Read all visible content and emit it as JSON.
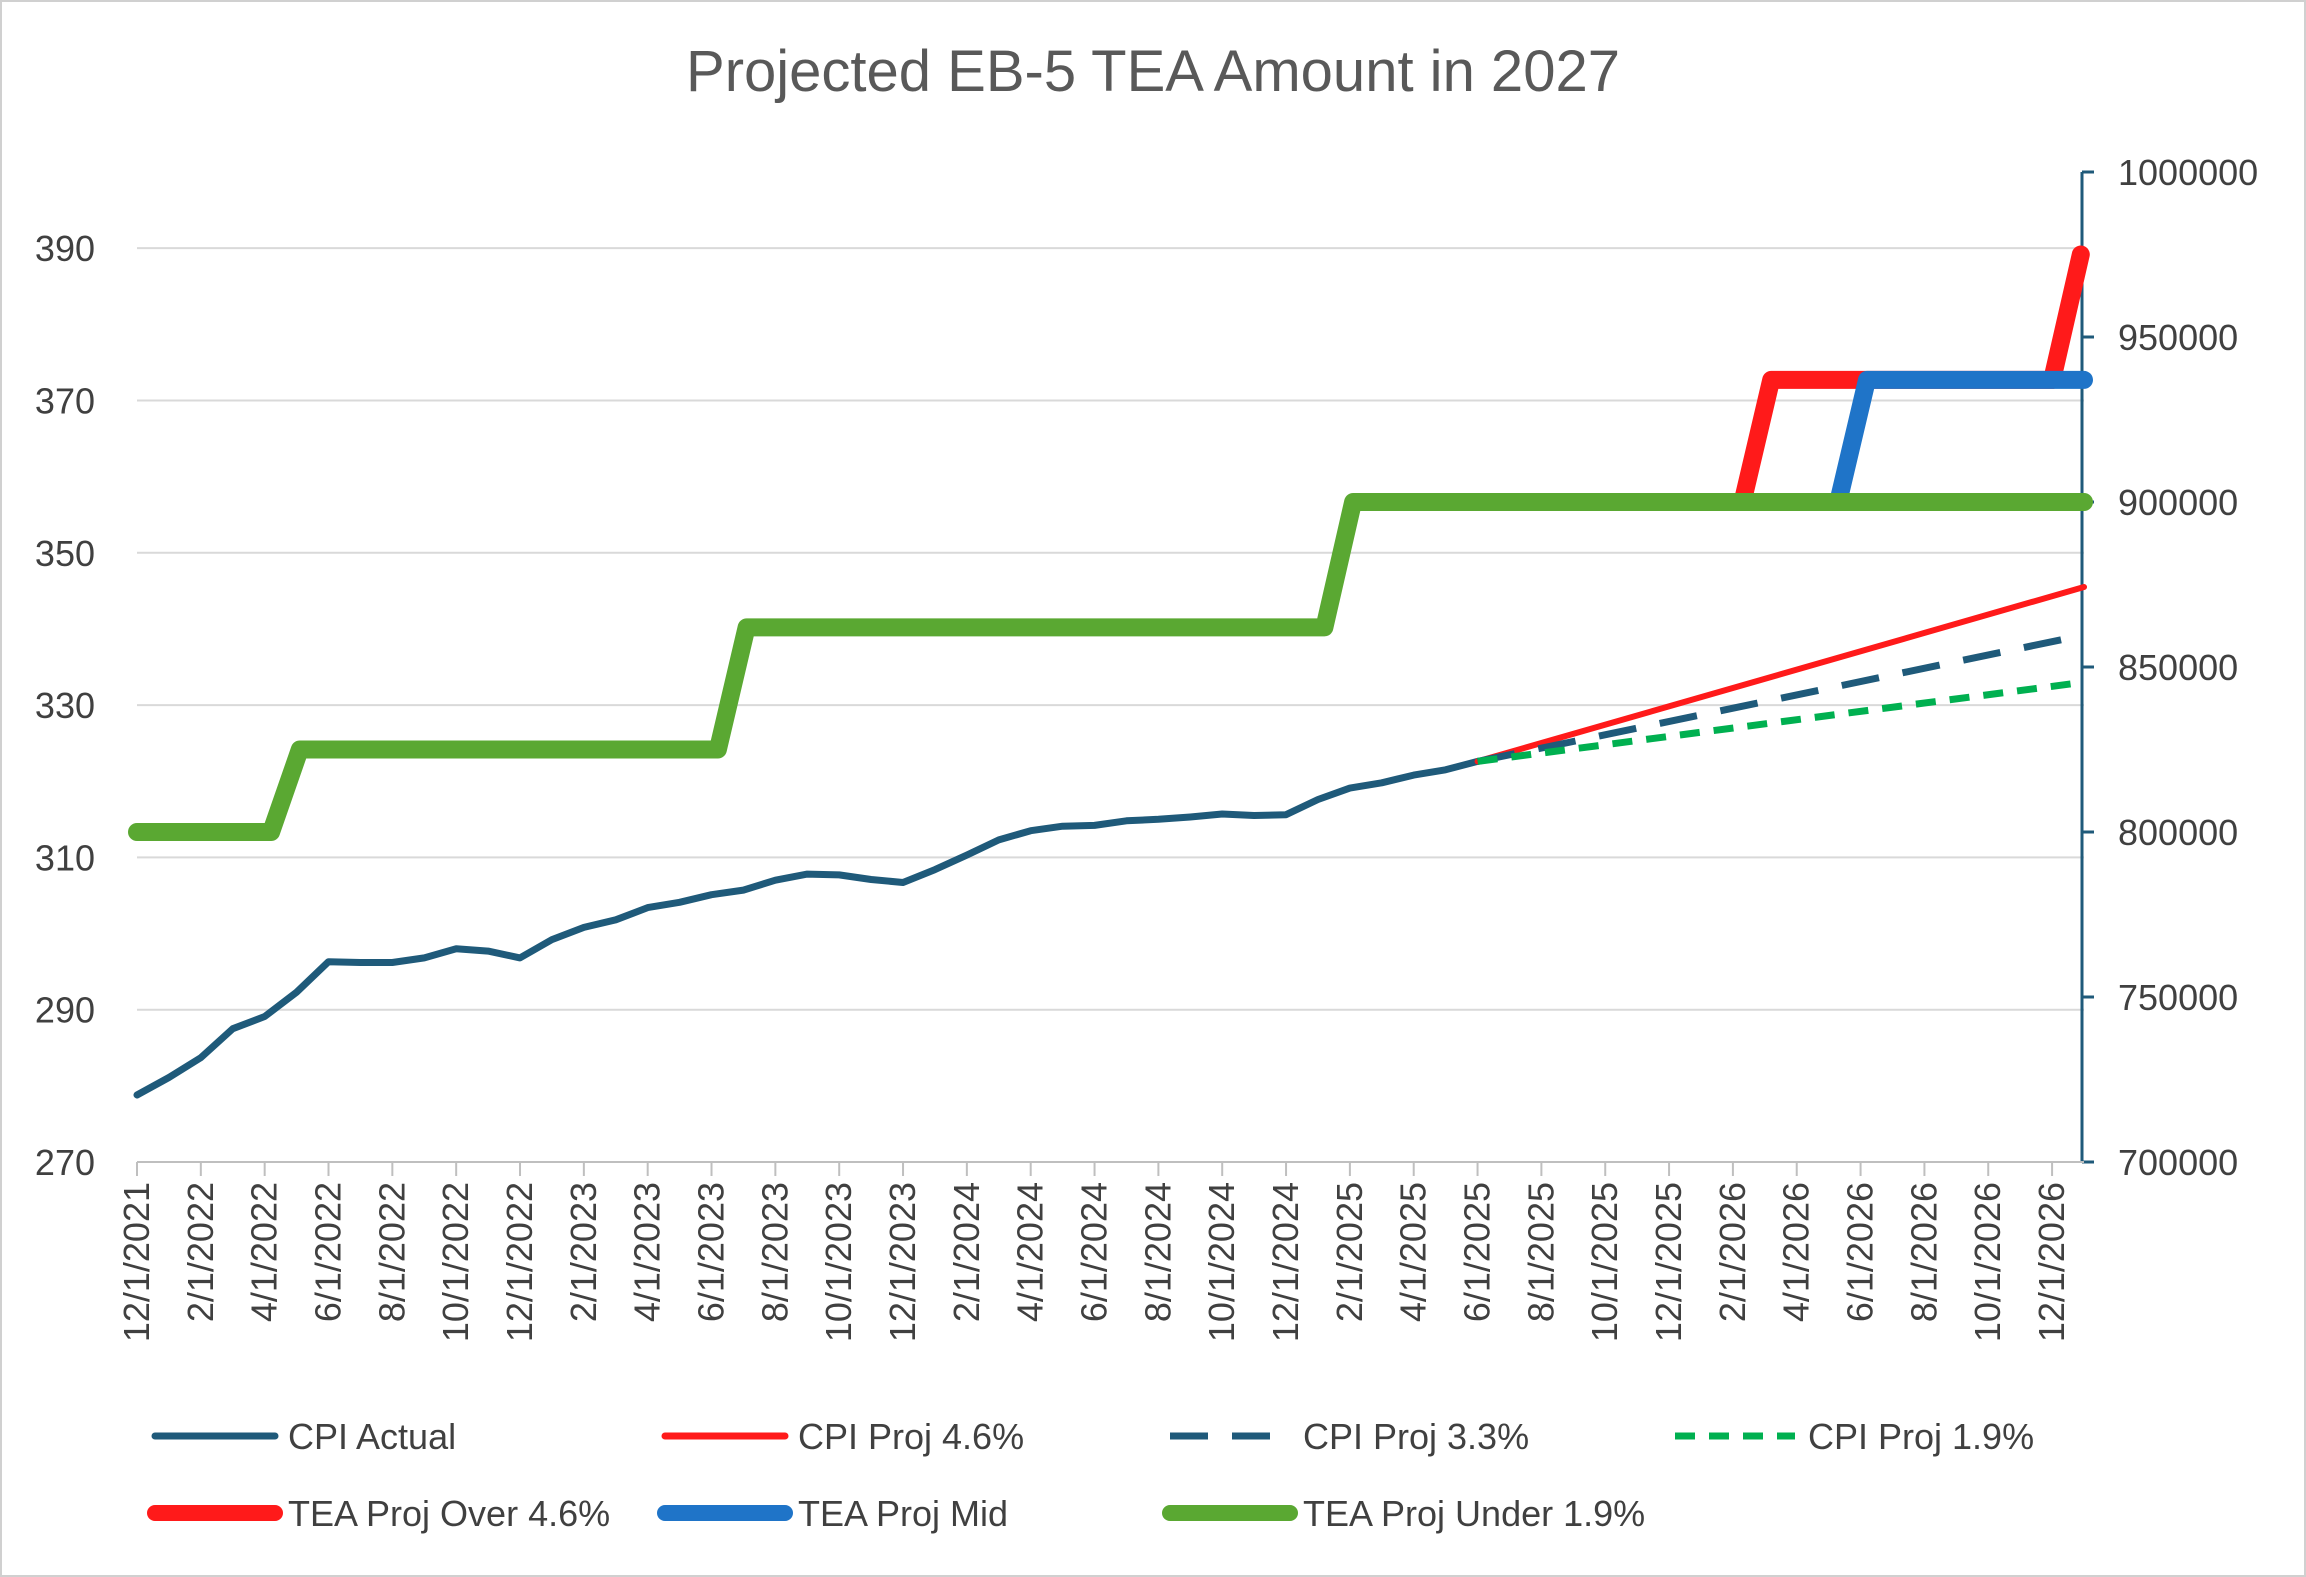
{
  "chart_data": {
    "type": "line",
    "title": "Projected EB-5 TEA Amount in 2027",
    "x_tick_labels": [
      "12/1/2021",
      "2/1/2022",
      "4/1/2022",
      "6/1/2022",
      "8/1/2022",
      "10/1/2022",
      "12/1/2022",
      "2/1/2023",
      "4/1/2023",
      "6/1/2023",
      "8/1/2023",
      "10/1/2023",
      "12/1/2023",
      "2/1/2024",
      "4/1/2024",
      "6/1/2024",
      "8/1/2024",
      "10/1/2024",
      "12/1/2024",
      "2/1/2025",
      "4/1/2025",
      "6/1/2025",
      "8/1/2025",
      "10/1/2025",
      "12/1/2025",
      "2/1/2026",
      "4/1/2026",
      "6/1/2026",
      "8/1/2026",
      "10/1/2026",
      "12/1/2026"
    ],
    "x_range_months": [
      0,
      61
    ],
    "y_left": {
      "ticks": [
        270,
        290,
        310,
        330,
        350,
        370,
        390
      ],
      "range": [
        270,
        400
      ]
    },
    "y_right": {
      "ticks": [
        700000,
        750000,
        800000,
        850000,
        900000,
        950000,
        1000000
      ],
      "range": [
        700000,
        1000000
      ]
    },
    "grid": true,
    "legend_position": "bottom",
    "series": [
      {
        "name": "CPI Actual",
        "axis": "left",
        "color": "#1f5a7a",
        "dash": "solid",
        "width": 7,
        "points": [
          [
            0,
            278.8
          ],
          [
            1,
            281.1
          ],
          [
            2,
            283.7
          ],
          [
            3,
            287.5
          ],
          [
            4,
            289.1
          ],
          [
            5,
            292.3
          ],
          [
            6,
            296.3
          ],
          [
            7,
            296.2
          ],
          [
            8,
            296.2
          ],
          [
            9,
            296.8
          ],
          [
            10,
            298.0
          ],
          [
            11,
            297.7
          ],
          [
            12,
            296.8
          ],
          [
            13,
            299.2
          ],
          [
            14,
            300.8
          ],
          [
            15,
            301.8
          ],
          [
            16,
            303.4
          ],
          [
            17,
            304.1
          ],
          [
            18,
            305.1
          ],
          [
            19,
            305.7
          ],
          [
            20,
            307.0
          ],
          [
            21,
            307.8
          ],
          [
            22,
            307.7
          ],
          [
            23,
            307.1
          ],
          [
            24,
            306.7
          ],
          [
            25,
            308.4
          ],
          [
            26,
            310.3
          ],
          [
            27,
            312.3
          ],
          [
            28,
            313.5
          ],
          [
            29,
            314.1
          ],
          [
            30,
            314.2
          ],
          [
            31,
            314.8
          ],
          [
            32,
            315.0
          ],
          [
            33,
            315.3
          ],
          [
            34,
            315.7
          ],
          [
            35,
            315.5
          ],
          [
            36,
            315.6
          ],
          [
            37,
            317.6
          ],
          [
            38,
            319.1
          ],
          [
            39,
            319.8
          ],
          [
            40,
            320.8
          ],
          [
            41,
            321.5
          ],
          [
            42,
            322.6
          ]
        ]
      },
      {
        "name": "CPI Proj 4.6%",
        "axis": "left",
        "color": "#ff1a1a",
        "dash": "solid",
        "width": 6,
        "points": [
          [
            42,
            322.6
          ],
          [
            61,
            345.5
          ]
        ]
      },
      {
        "name": "CPI Proj 3.3%",
        "axis": "left",
        "color": "#1f5a7a",
        "dash": "38,24",
        "width": 7,
        "points": [
          [
            42,
            322.6
          ],
          [
            61,
            339.2
          ]
        ]
      },
      {
        "name": "CPI Proj 1.9%",
        "axis": "left",
        "color": "#00b050",
        "dash": "20,14",
        "width": 7,
        "points": [
          [
            42,
            322.6
          ],
          [
            61,
            333.0
          ]
        ]
      },
      {
        "name": "TEA Proj Over 4.6%",
        "axis": "right",
        "color": "#ff1a1a",
        "dash": "solid",
        "width": 18,
        "points": [
          [
            50.3,
            900000
          ],
          [
            51.2,
            937000
          ],
          [
            55,
            937000
          ],
          [
            60,
            937000
          ],
          [
            60.9,
            975000
          ]
        ]
      },
      {
        "name": "TEA Proj Mid",
        "axis": "right",
        "color": "#1f74c8",
        "dash": "solid",
        "width": 18,
        "points": [
          [
            53.3,
            900000
          ],
          [
            54.2,
            937000
          ],
          [
            61,
            937000
          ]
        ]
      },
      {
        "name": "TEA Proj Under 1.9%",
        "axis": "right",
        "color": "#5aa832",
        "dash": "solid",
        "width": 18,
        "points": [
          [
            0,
            800000
          ],
          [
            4.2,
            800000
          ],
          [
            5.1,
            825000
          ],
          [
            18.2,
            825000
          ],
          [
            19.1,
            862000
          ],
          [
            37.2,
            862000
          ],
          [
            38.1,
            900000
          ],
          [
            61,
            900000
          ]
        ]
      }
    ]
  }
}
